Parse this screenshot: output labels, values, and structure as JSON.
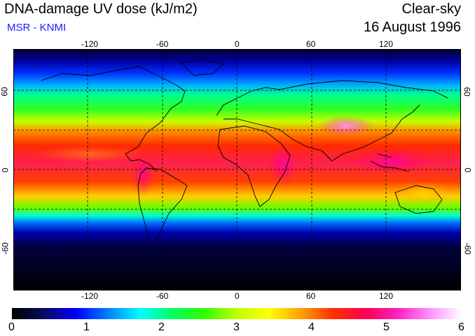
{
  "header": {
    "title": "DNA-damage UV dose (kJ/m2)",
    "source": "MSR - KNMI",
    "condition": "Clear-sky",
    "date": "16 August 1996"
  },
  "map": {
    "lon_ticks_top": [
      "-120",
      "-60",
      "0",
      "60",
      "120"
    ],
    "lon_ticks_bottom": [
      "-120",
      "-60",
      "0",
      "60",
      "120"
    ],
    "lat_ticks_left": [
      "60",
      "0",
      "-60"
    ],
    "lat_ticks_right": [
      "60",
      "0",
      "-60"
    ],
    "gridlines": true,
    "lon_range": [
      -180,
      180
    ],
    "lat_range": [
      -90,
      90
    ]
  },
  "colorbar": {
    "labels": [
      "0",
      "1",
      "2",
      "3",
      "4",
      "5",
      "6"
    ],
    "min": 0,
    "max": 6,
    "colors": [
      "#000000",
      "#0a0a60",
      "#0000ff",
      "#0080ff",
      "#00ffff",
      "#00ff60",
      "#30ff00",
      "#c0ff00",
      "#ffff00",
      "#ffa000",
      "#ff3000",
      "#ff0050",
      "#ff20c0",
      "#ff90ff",
      "#ffffff"
    ]
  }
}
